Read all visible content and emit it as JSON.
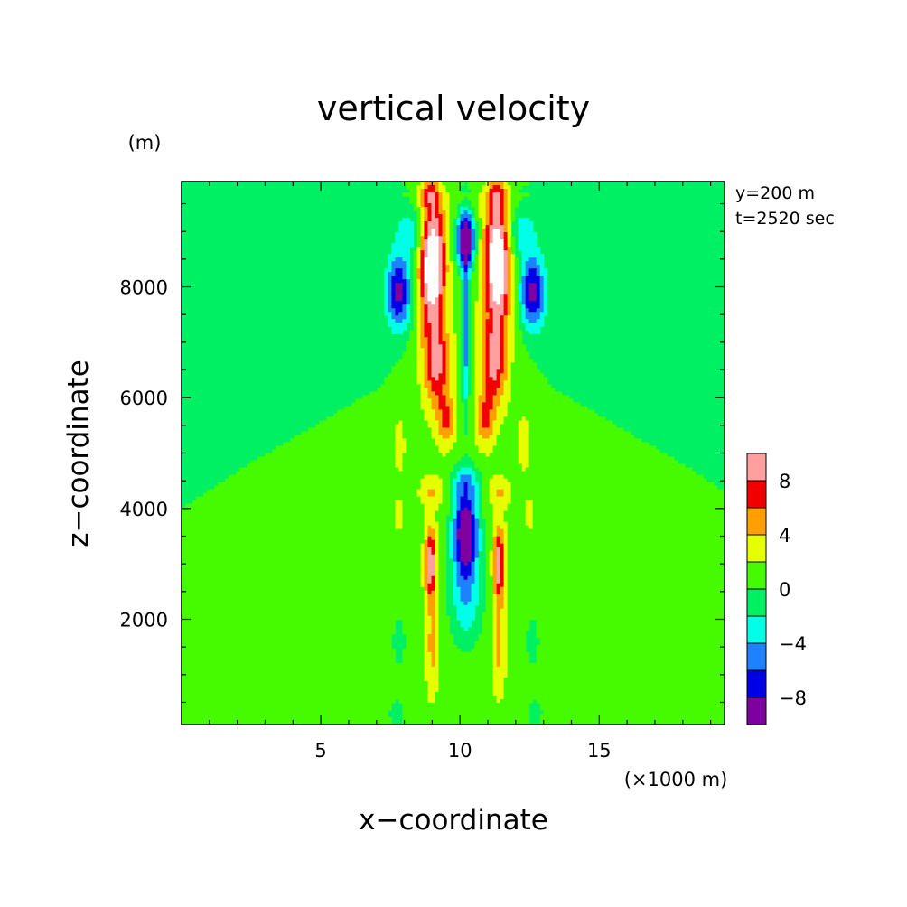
{
  "chart_data": {
    "type": "heatmap",
    "title": "vertical velocity",
    "xlabel": "x−coordinate",
    "ylabel": "z−coordinate",
    "x_unit": "(×1000 m)",
    "y_unit": "(m)",
    "annotations": [
      "y=200 m",
      "t=2520 sec"
    ],
    "xlim": [
      0,
      19.5
    ],
    "ylim": [
      100,
      9900
    ],
    "x_ticks": [
      5,
      10,
      15
    ],
    "y_ticks": [
      2000,
      4000,
      6000,
      8000
    ],
    "x_tick_labels": [
      "5",
      "10",
      "15"
    ],
    "y_tick_labels": [
      "2000",
      "4000",
      "6000",
      "8000"
    ],
    "colorbar": {
      "levels": [
        -10,
        -8,
        -6,
        -4,
        -2,
        0,
        2,
        4,
        6,
        8,
        10
      ],
      "tick_labels": [
        "−8",
        "−4",
        "0",
        "4",
        "8"
      ],
      "tick_values": [
        -8,
        -4,
        0,
        4,
        8
      ],
      "colors": [
        "#7f00a0",
        "#0000e6",
        "#1e82ff",
        "#00ffe6",
        "#00f064",
        "#46fa00",
        "#e6ff00",
        "#ffa000",
        "#f00000",
        "#ff9f9f"
      ],
      "above_max_color": "#ffffff"
    },
    "features": [
      {
        "name": "upper outer updraft left",
        "x": 9.0,
        "z": 8300,
        "peak": 11
      },
      {
        "name": "upper outer updraft right",
        "x": 11.3,
        "z": 8300,
        "peak": 11
      },
      {
        "name": "upper core downdraft",
        "x": 10.2,
        "z": 8800,
        "peak": -10.5
      },
      {
        "name": "upper flank downdraft left",
        "x": 7.8,
        "z": 7900,
        "peak": -8
      },
      {
        "name": "upper flank downdraft right",
        "x": 12.6,
        "z": 7900,
        "peak": -8
      },
      {
        "name": "lower core downdraft",
        "x": 10.2,
        "z": 3600,
        "peak": -10
      },
      {
        "name": "lower updraft left",
        "x": 8.9,
        "z": 3000,
        "peak": 7
      },
      {
        "name": "lower updraft right",
        "x": 11.3,
        "z": 3000,
        "peak": 7
      }
    ]
  },
  "colors": {
    "background_field": "#00f064",
    "frame": "#000000"
  }
}
